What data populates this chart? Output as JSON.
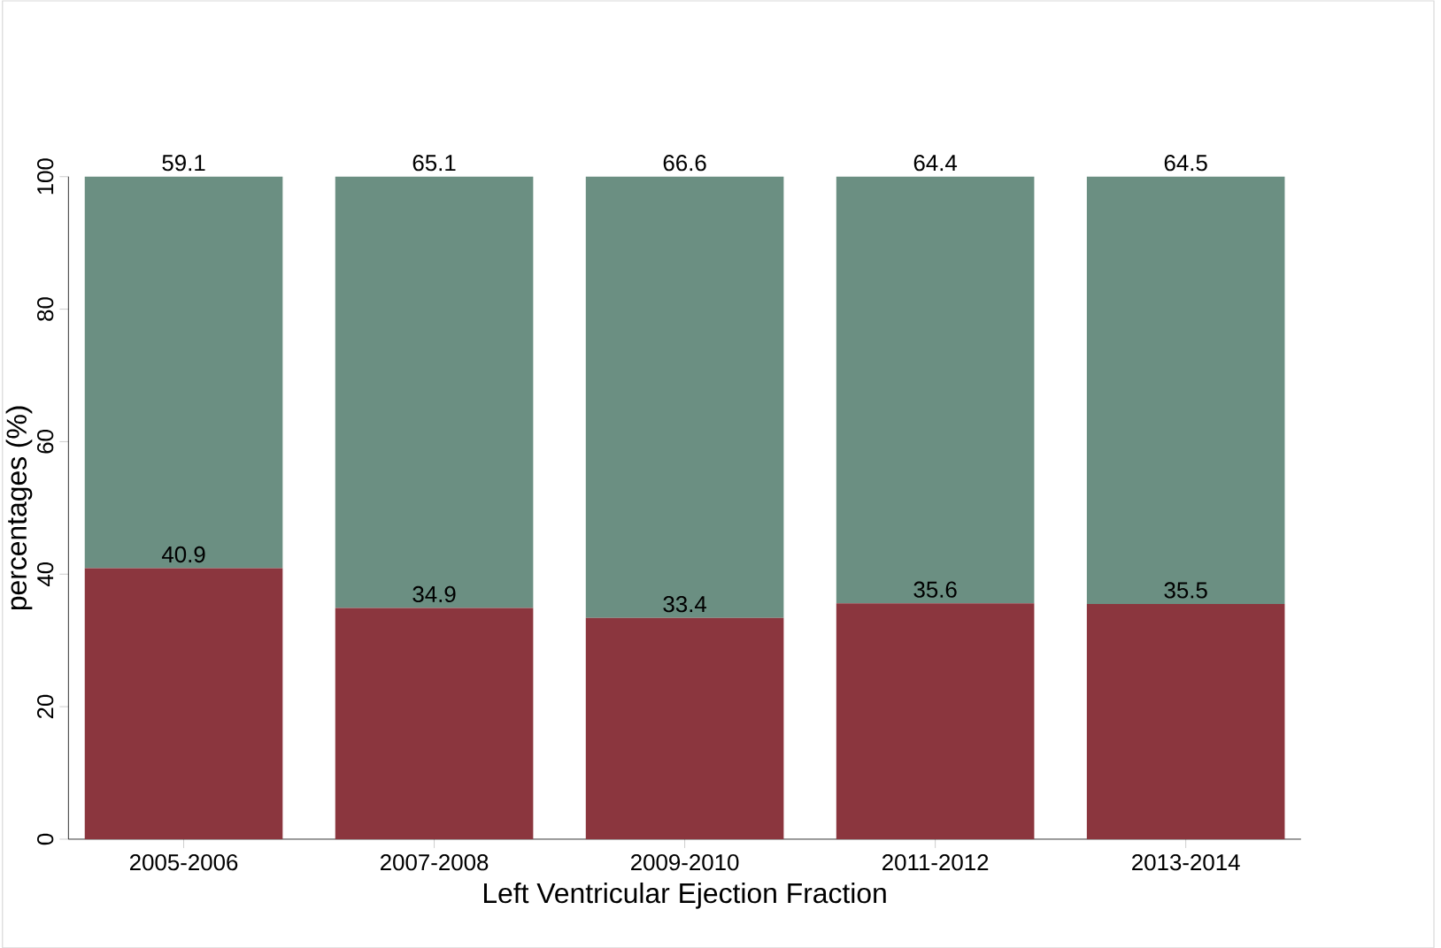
{
  "chart_data": {
    "type": "bar",
    "stacked": true,
    "xlabel": "Left Ventricular Ejection Fraction",
    "ylabel": "percentages (%)",
    "categories": [
      "2005-2006",
      "2007-2008",
      "2009-2010",
      "2011-2012",
      "2013-2014"
    ],
    "series": [
      {
        "color": "#8b363e",
        "values": [
          40.9,
          34.9,
          33.4,
          35.6,
          35.5
        ]
      },
      {
        "color": "#6b8f82",
        "values": [
          59.1,
          65.1,
          66.6,
          64.4,
          64.5
        ]
      }
    ],
    "ylim": [
      0,
      100
    ],
    "yticks": [
      0,
      20,
      40,
      60,
      80,
      100
    ],
    "data_labels": true
  }
}
